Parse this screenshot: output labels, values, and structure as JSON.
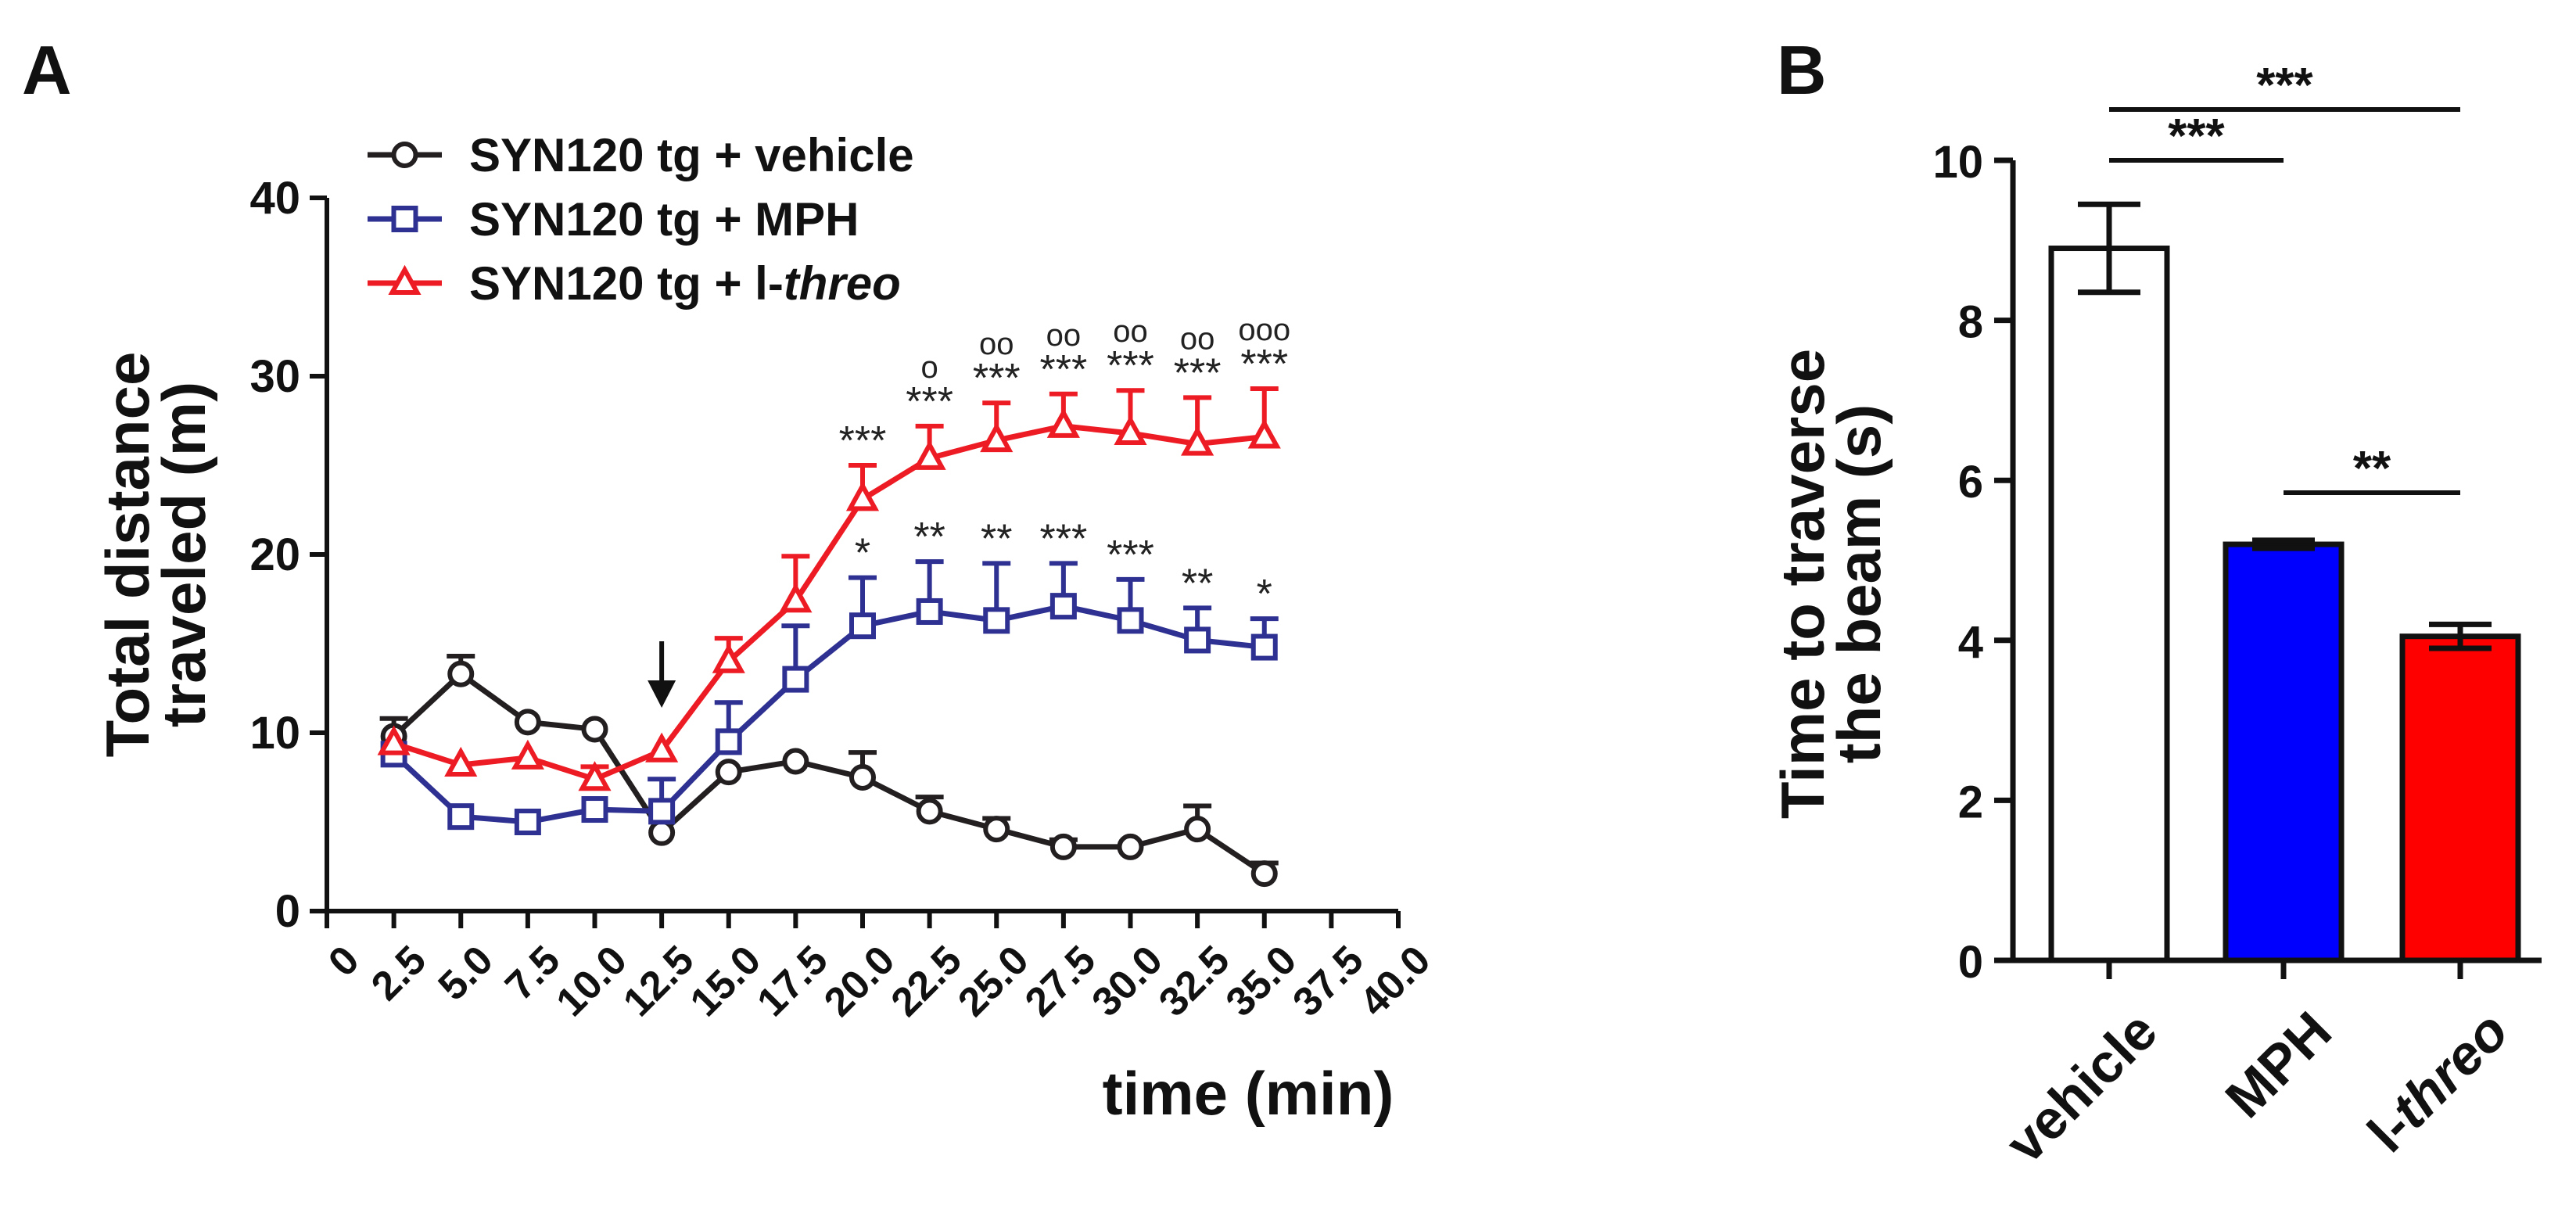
{
  "chart_data": [
    {
      "panel": "A",
      "type": "line",
      "xlabel": "time (min)",
      "ylabel": [
        "Total distance",
        "traveled (m)"
      ],
      "xlim": [
        0,
        40
      ],
      "ylim": [
        0,
        40
      ],
      "x_ticks": [
        "0",
        "2.5",
        "5.0",
        "7.5",
        "10.0",
        "12.5",
        "15.0",
        "17.5",
        "20.0",
        "22.5",
        "25.0",
        "27.5",
        "30.0",
        "32.5",
        "35.0",
        "37.5",
        "40.0"
      ],
      "y_ticks": [
        "0",
        "10",
        "20",
        "30",
        "40"
      ],
      "x": [
        2.5,
        5.0,
        7.5,
        10.0,
        12.5,
        15.0,
        17.5,
        20.0,
        22.5,
        25.0,
        27.5,
        30.0,
        32.5,
        35.0
      ],
      "series": [
        {
          "name": "SYN120 tg + vehicle",
          "name_parts": [
            "SYN120 tg + vehicle",
            ""
          ],
          "marker": "circle",
          "color": "#231f20",
          "values": [
            9.8,
            13.3,
            10.6,
            10.2,
            4.4,
            7.8,
            8.4,
            7.5,
            5.6,
            4.6,
            3.6,
            3.6,
            4.6,
            2.1
          ],
          "errors": [
            1.0,
            1.0,
            0.0,
            0.0,
            0.0,
            0.0,
            0.0,
            1.4,
            0.8,
            0.6,
            0.4,
            0.0,
            1.3,
            0.6
          ]
        },
        {
          "name": "SYN120 tg + MPH",
          "name_parts": [
            "SYN120 tg + MPH",
            ""
          ],
          "marker": "square",
          "color": "#2e3192",
          "values": [
            8.8,
            5.3,
            5.0,
            5.7,
            5.6,
            9.5,
            13.0,
            16.0,
            16.8,
            16.3,
            17.1,
            16.3,
            15.2,
            14.8
          ],
          "errors": [
            0.0,
            0.0,
            0.0,
            0.0,
            1.8,
            2.2,
            3.0,
            2.7,
            2.8,
            3.2,
            2.4,
            2.3,
            1.8,
            1.6
          ]
        },
        {
          "name": "SYN120 tg + l-threo",
          "name_parts": [
            "SYN120 tg + l-",
            "threo"
          ],
          "marker": "triangle",
          "color": "#ed1c24",
          "values": [
            9.4,
            8.2,
            8.6,
            7.4,
            9.0,
            14.0,
            17.4,
            23.1,
            25.4,
            26.4,
            27.2,
            26.8,
            26.2,
            26.6
          ],
          "errors": [
            0.0,
            0.0,
            0.0,
            0.7,
            0.0,
            1.3,
            2.5,
            1.9,
            1.8,
            2.1,
            1.8,
            2.4,
            2.6,
            2.7
          ]
        }
      ],
      "annotations": {
        "arrow_at_x": 12.5,
        "red_stars": [
          {
            "x": 20.0,
            "text": "***"
          },
          {
            "x": 22.5,
            "text": "***"
          },
          {
            "x": 25.0,
            "text": "***"
          },
          {
            "x": 27.5,
            "text": "***"
          },
          {
            "x": 30.0,
            "text": "***"
          },
          {
            "x": 32.5,
            "text": "***"
          },
          {
            "x": 35.0,
            "text": "***"
          }
        ],
        "red_circles": [
          {
            "x": 22.5,
            "text": "o"
          },
          {
            "x": 25.0,
            "text": "oo"
          },
          {
            "x": 27.5,
            "text": "oo"
          },
          {
            "x": 30.0,
            "text": "oo"
          },
          {
            "x": 32.5,
            "text": "oo"
          },
          {
            "x": 35.0,
            "text": "ooo"
          }
        ],
        "blue_stars": [
          {
            "x": 20.0,
            "text": "*"
          },
          {
            "x": 22.5,
            "text": "**"
          },
          {
            "x": 25.0,
            "text": "**"
          },
          {
            "x": 27.5,
            "text": "***"
          },
          {
            "x": 30.0,
            "text": "***"
          },
          {
            "x": 32.5,
            "text": "**"
          },
          {
            "x": 35.0,
            "text": "*"
          }
        ]
      }
    },
    {
      "panel": "B",
      "type": "bar",
      "ylabel": [
        "Time to traverse",
        "the beam (s)"
      ],
      "ylim": [
        0,
        10
      ],
      "y_ticks": [
        "0",
        "2",
        "4",
        "6",
        "8",
        "10"
      ],
      "categories": [
        {
          "parts": [
            "vehicle",
            ""
          ]
        },
        {
          "parts": [
            "MPH",
            ""
          ]
        },
        {
          "parts": [
            "l-",
            "threo"
          ]
        }
      ],
      "values": [
        8.9,
        5.2,
        4.05
      ],
      "errors": [
        0.55,
        0.05,
        0.15
      ],
      "colors": [
        "#ffffff",
        "#0000ff",
        "#ff0000"
      ],
      "significance": [
        {
          "from": 0,
          "to": 1,
          "label": "***",
          "level": 1
        },
        {
          "from": 0,
          "to": 2,
          "label": "***",
          "level": 2
        },
        {
          "from": 1,
          "to": 2,
          "label": "**",
          "level": 0
        }
      ]
    }
  ],
  "labels": {
    "panel_a": "A",
    "panel_b": "B"
  }
}
